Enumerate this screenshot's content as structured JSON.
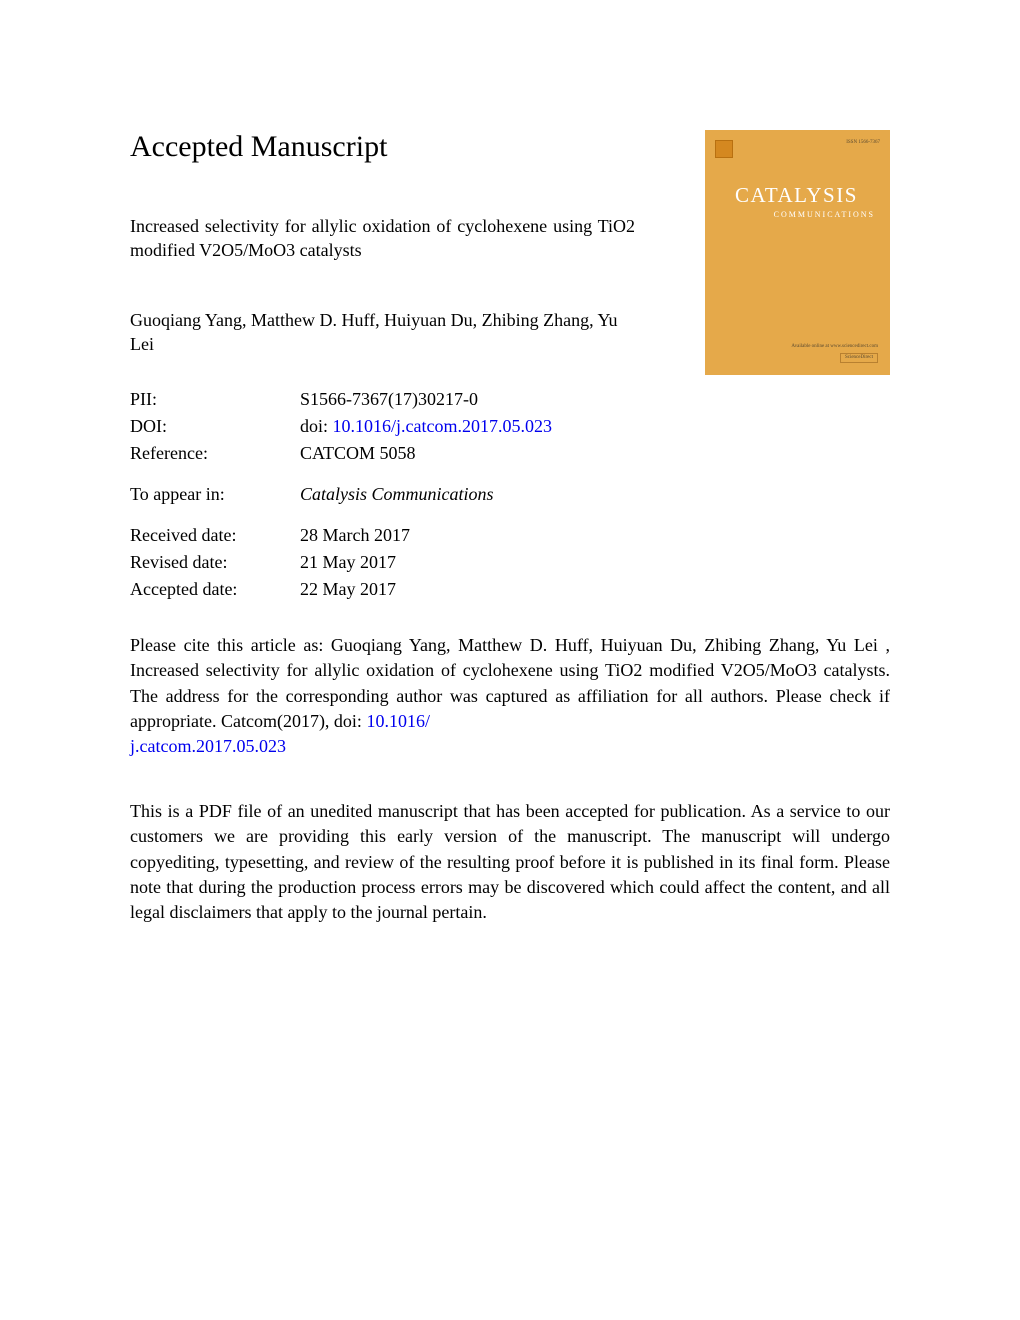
{
  "heading": "Accepted Manuscript",
  "article_title": "Increased selectivity for allylic oxidation of cyclohexene using TiO2 modified V2O5/MoO3 catalysts",
  "authors": "Guoqiang Yang, Matthew D. Huff, Huiyuan Du, Zhibing Zhang, Yu Lei",
  "cover": {
    "issn": "ISSN 1566-7367",
    "series_label": "CATALYSIS",
    "journal_name": "CATALYSIS",
    "subtitle": "COMMUNICATIONS",
    "footer_line1": "Available online at www.sciencedirect.com",
    "footer_box": "ScienceDirect"
  },
  "metadata": {
    "pii_label": "PII:",
    "pii_value": "S1566-7367(17)30217-0",
    "doi_label": "DOI:",
    "doi_prefix": "doi: ",
    "doi_link": "10.1016/j.catcom.2017.05.023",
    "reference_label": "Reference:",
    "reference_value": "CATCOM 5058",
    "appear_label": "To appear in:",
    "appear_value": "Catalysis Communications",
    "received_label": "Received date:",
    "received_value": "28 March 2017",
    "revised_label": "Revised date:",
    "revised_value": "21 May 2017",
    "accepted_label": "Accepted date:",
    "accepted_value": "22 May 2017"
  },
  "citation": {
    "text_before": "Please cite this article as: Guoqiang Yang, Matthew D. Huff, Huiyuan Du, Zhibing Zhang, Yu Lei , Increased selectivity for allylic oxidation of cyclohexene using TiO2 modified V2O5/MoO3 catalysts. The address for the corresponding author was captured as affiliation for all authors. Please check if appropriate. Catcom(2017), doi: ",
    "link1": "10.1016/",
    "link2": "j.catcom.2017.05.023"
  },
  "disclaimer": "This is a PDF file of an unedited manuscript that has been accepted for publication. As a service to our customers we are providing this early version of the manuscript. The manuscript will undergo copyediting, typesetting, and review of the resulting proof before it is published in its final form. Please note that during the production process errors may be discovered which could affect the content, and all legal disclaimers that apply to the journal pertain.",
  "colors": {
    "link_color": "#0000ee",
    "cover_bg": "#e5a94a"
  }
}
